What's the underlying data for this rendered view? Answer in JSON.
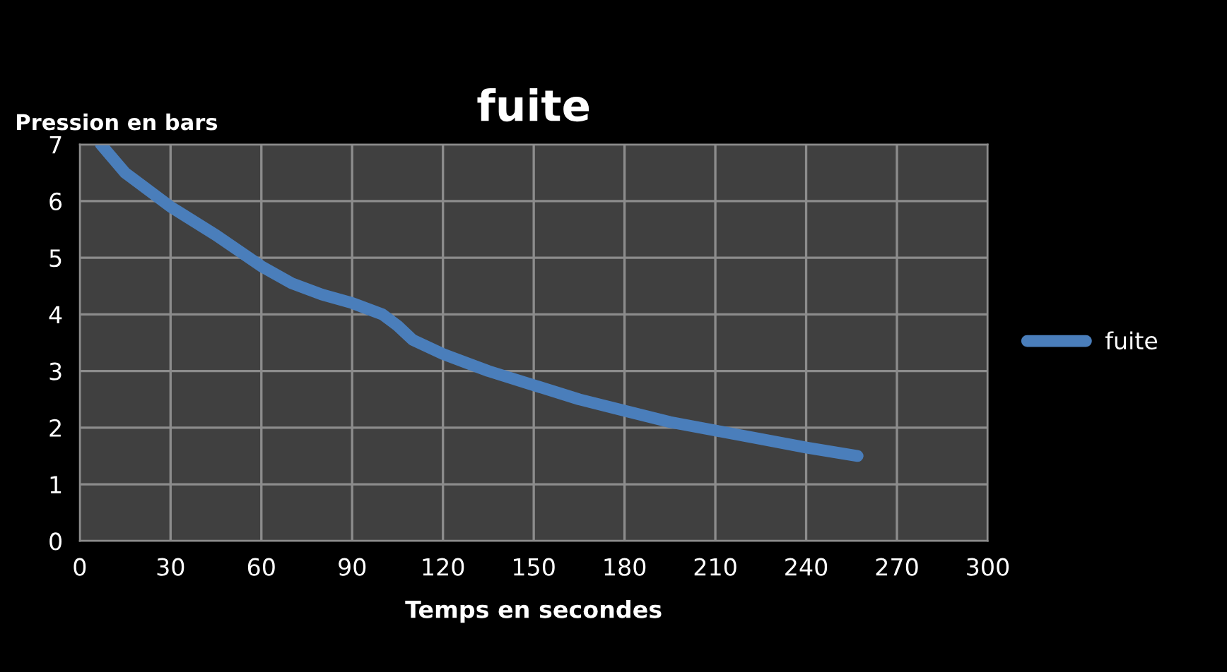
{
  "chart_data": {
    "type": "line",
    "title": "fuite",
    "xlabel": "Temps en secondes",
    "ylabel": "Pression en bars",
    "x": [
      7,
      15,
      30,
      45,
      60,
      70,
      80,
      90,
      100,
      105,
      110,
      120,
      135,
      150,
      165,
      180,
      195,
      210,
      225,
      240,
      257
    ],
    "series": [
      {
        "name": "fuite",
        "color": "#4a7ebb",
        "values": [
          7.0,
          6.5,
          5.9,
          5.4,
          4.85,
          4.55,
          4.35,
          4.2,
          4.0,
          3.8,
          3.55,
          3.3,
          3.0,
          2.75,
          2.5,
          2.3,
          2.1,
          1.95,
          1.8,
          1.65,
          1.5
        ]
      }
    ],
    "xlim": [
      0,
      300
    ],
    "xticks": [
      0,
      30,
      60,
      90,
      120,
      150,
      180,
      210,
      240,
      270,
      300
    ],
    "ylim": [
      0,
      7
    ],
    "yticks": [
      0,
      1,
      2,
      3,
      4,
      5,
      6,
      7
    ],
    "grid": true,
    "legend": "right",
    "marker": "none",
    "line_style": "solid"
  }
}
